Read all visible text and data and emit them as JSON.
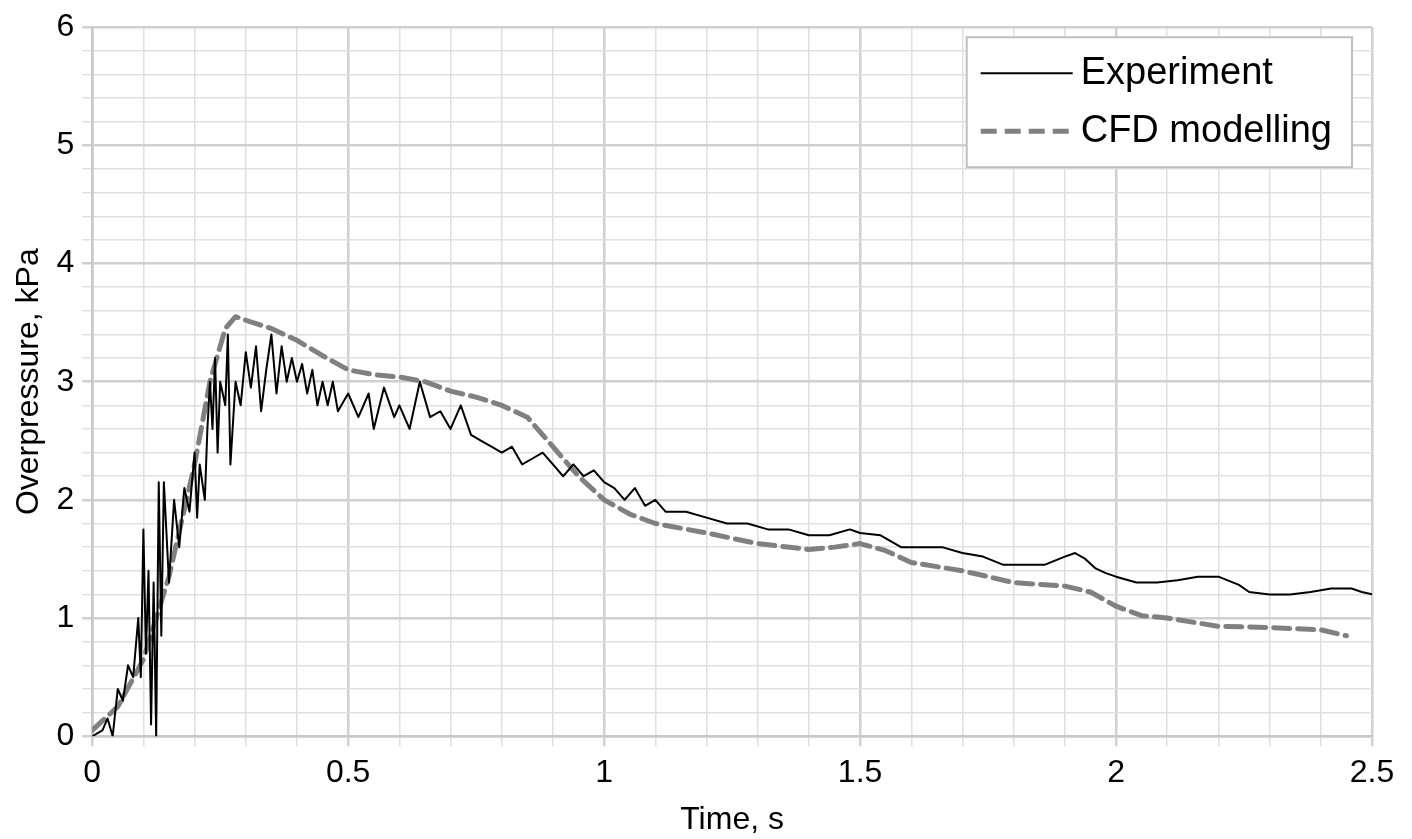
{
  "chart_data": {
    "type": "line",
    "xlabel": "Time, s",
    "ylabel": "Overpressure, kPa",
    "xlim": [
      0,
      2.5
    ],
    "ylim": [
      0,
      6
    ],
    "xticks": [
      0,
      {
        "value": 0.1,
        "label": null
      },
      {
        "value": 0.2,
        "label": null
      },
      {
        "value": 0.3,
        "label": null
      },
      {
        "value": 0.4,
        "label": null
      },
      0.5,
      {
        "value": 0.6,
        "label": null
      },
      {
        "value": 0.7,
        "label": null
      },
      {
        "value": 0.8,
        "label": null
      },
      {
        "value": 0.9,
        "label": null
      },
      1,
      {
        "value": 1.1,
        "label": null
      },
      {
        "value": 1.2,
        "label": null
      },
      {
        "value": 1.3,
        "label": null
      },
      {
        "value": 1.4,
        "label": null
      },
      1.5,
      {
        "value": 1.6,
        "label": null
      },
      {
        "value": 1.7,
        "label": null
      },
      {
        "value": 1.8,
        "label": null
      },
      {
        "value": 1.9,
        "label": null
      },
      2,
      {
        "value": 2.1,
        "label": null
      },
      {
        "value": 2.2,
        "label": null
      },
      {
        "value": 2.3,
        "label": null
      },
      {
        "value": 2.4,
        "label": null
      },
      2.5
    ],
    "yticks": [
      0,
      {
        "value": 0.2,
        "label": null
      },
      {
        "value": 0.4,
        "label": null
      },
      {
        "value": 0.6,
        "label": null
      },
      {
        "value": 0.8,
        "label": null
      },
      1,
      {
        "value": 1.2,
        "label": null
      },
      {
        "value": 1.4,
        "label": null
      },
      {
        "value": 1.6,
        "label": null
      },
      {
        "value": 1.8,
        "label": null
      },
      2,
      {
        "value": 2.2,
        "label": null
      },
      {
        "value": 2.4,
        "label": null
      },
      {
        "value": 2.6,
        "label": null
      },
      {
        "value": 2.8,
        "label": null
      },
      3,
      {
        "value": 3.2,
        "label": null
      },
      {
        "value": 3.4,
        "label": null
      },
      {
        "value": 3.6,
        "label": null
      },
      {
        "value": 3.8,
        "label": null
      },
      4,
      {
        "value": 4.2,
        "label": null
      },
      {
        "value": 4.4,
        "label": null
      },
      {
        "value": 4.6,
        "label": null
      },
      {
        "value": 4.8,
        "label": null
      },
      5,
      {
        "value": 5.2,
        "label": null
      },
      {
        "value": 5.4,
        "label": null
      },
      {
        "value": 5.6,
        "label": null
      },
      {
        "value": 5.8,
        "label": null
      },
      6
    ],
    "grid": true,
    "legend": "top right",
    "marker": "none",
    "series": [
      {
        "name": "Experiment",
        "color": "#000000",
        "line_style": "solid",
        "x": [
          0,
          0.02,
          0.03,
          0.04,
          0.05,
          0.06,
          0.07,
          0.08,
          0.09,
          0.095,
          0.1,
          0.105,
          0.11,
          0.115,
          0.12,
          0.125,
          0.13,
          0.135,
          0.14,
          0.15,
          0.16,
          0.17,
          0.18,
          0.19,
          0.2,
          0.205,
          0.21,
          0.22,
          0.225,
          0.23,
          0.235,
          0.24,
          0.245,
          0.25,
          0.26,
          0.265,
          0.27,
          0.28,
          0.29,
          0.3,
          0.31,
          0.32,
          0.33,
          0.34,
          0.35,
          0.36,
          0.37,
          0.38,
          0.39,
          0.4,
          0.41,
          0.42,
          0.43,
          0.44,
          0.45,
          0.46,
          0.47,
          0.48,
          0.5,
          0.52,
          0.54,
          0.55,
          0.57,
          0.59,
          0.6,
          0.62,
          0.64,
          0.66,
          0.68,
          0.7,
          0.72,
          0.74,
          0.76,
          0.78,
          0.8,
          0.82,
          0.84,
          0.86,
          0.88,
          0.9,
          0.92,
          0.94,
          0.96,
          0.98,
          1,
          1.02,
          1.04,
          1.06,
          1.08,
          1.1,
          1.12,
          1.16,
          1.2,
          1.24,
          1.28,
          1.32,
          1.36,
          1.4,
          1.44,
          1.48,
          1.5,
          1.54,
          1.58,
          1.62,
          1.66,
          1.7,
          1.74,
          1.78,
          1.82,
          1.86,
          1.9,
          1.92,
          1.94,
          1.96,
          1.98,
          2,
          2.04,
          2.08,
          2.12,
          2.16,
          2.2,
          2.24,
          2.26,
          2.3,
          2.34,
          2.38,
          2.42,
          2.46,
          2.48,
          2.5
        ],
        "values": [
          0,
          0.05,
          0.15,
          0,
          0.4,
          0.3,
          0.6,
          0.5,
          1,
          0.5,
          1.75,
          0.7,
          1.4,
          0.1,
          1.3,
          0,
          2.15,
          0.85,
          2.15,
          1.3,
          2,
          1.6,
          2.1,
          1.9,
          2.4,
          1.85,
          2.3,
          2,
          2.6,
          3,
          2.6,
          3.2,
          2.4,
          3,
          2.8,
          3.4,
          2.3,
          3,
          2.8,
          3.25,
          2.95,
          3.3,
          2.75,
          3.1,
          3.4,
          2.9,
          3.3,
          3,
          3.2,
          3,
          3.15,
          2.9,
          3.1,
          2.8,
          3,
          2.8,
          3,
          2.75,
          2.9,
          2.7,
          2.9,
          2.6,
          2.95,
          2.7,
          2.8,
          2.6,
          3,
          2.7,
          2.75,
          2.6,
          2.8,
          2.55,
          2.5,
          2.45,
          2.4,
          2.45,
          2.3,
          2.35,
          2.4,
          2.3,
          2.2,
          2.3,
          2.2,
          2.25,
          2.15,
          2.1,
          2,
          2.1,
          1.95,
          2,
          1.9,
          1.9,
          1.85,
          1.8,
          1.8,
          1.75,
          1.75,
          1.7,
          1.7,
          1.75,
          1.72,
          1.7,
          1.6,
          1.6,
          1.6,
          1.55,
          1.52,
          1.45,
          1.45,
          1.45,
          1.52,
          1.55,
          1.5,
          1.42,
          1.38,
          1.35,
          1.3,
          1.3,
          1.32,
          1.35,
          1.35,
          1.28,
          1.22,
          1.2,
          1.2,
          1.22,
          1.25,
          1.25,
          1.22,
          1.2
        ]
      },
      {
        "name": "CFD modelling",
        "color": "#808080",
        "line_style": "dashed",
        "x": [
          0,
          0.05,
          0.1,
          0.15,
          0.2,
          0.23,
          0.26,
          0.28,
          0.3,
          0.35,
          0.4,
          0.45,
          0.5,
          0.55,
          0.6,
          0.65,
          0.7,
          0.75,
          0.8,
          0.85,
          0.9,
          0.95,
          1,
          1.05,
          1.1,
          1.2,
          1.3,
          1.4,
          1.45,
          1.5,
          1.55,
          1.6,
          1.7,
          1.8,
          1.9,
          1.95,
          2,
          2.05,
          2.1,
          2.2,
          2.3,
          2.4,
          2.45
        ],
        "values": [
          0.05,
          0.25,
          0.65,
          1.35,
          2.3,
          3,
          3.45,
          3.55,
          3.52,
          3.45,
          3.35,
          3.22,
          3.1,
          3.06,
          3.04,
          3,
          2.92,
          2.87,
          2.8,
          2.7,
          2.45,
          2.2,
          2,
          1.88,
          1.8,
          1.72,
          1.63,
          1.58,
          1.6,
          1.63,
          1.57,
          1.47,
          1.4,
          1.3,
          1.27,
          1.22,
          1.1,
          1.02,
          1,
          0.93,
          0.92,
          0.9,
          0.85
        ]
      }
    ]
  }
}
